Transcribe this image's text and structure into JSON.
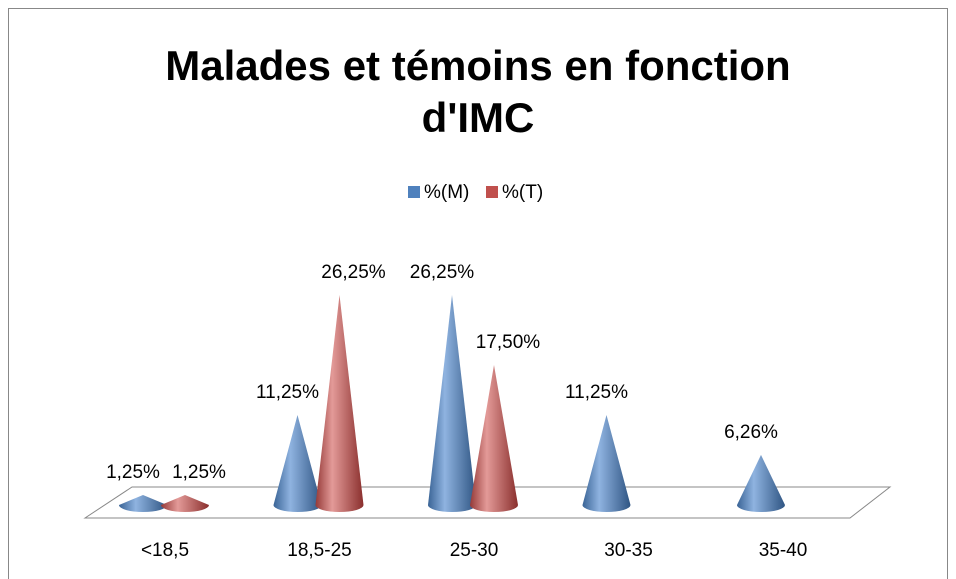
{
  "chart_data": {
    "type": "cone3d",
    "title": "Malades et témoins en fonction d'IMC",
    "categories": [
      "<18,5",
      "18,5-25",
      "25-30",
      "30-35",
      "35-40"
    ],
    "series": [
      {
        "name": "%(M)",
        "color": "#4f81bd",
        "values": [
          1.25,
          11.25,
          26.25,
          11.25,
          6.26
        ],
        "value_labels": [
          "1,25%",
          "11,25%",
          "26,25%",
          "11,25%",
          "6,26%"
        ]
      },
      {
        "name": "%(T)",
        "color": "#c0504d",
        "values": [
          1.25,
          26.25,
          17.5,
          null,
          null
        ],
        "value_labels": [
          "1,25%",
          "26,25%",
          "17,50%",
          null,
          null
        ]
      }
    ],
    "legend": "top"
  }
}
